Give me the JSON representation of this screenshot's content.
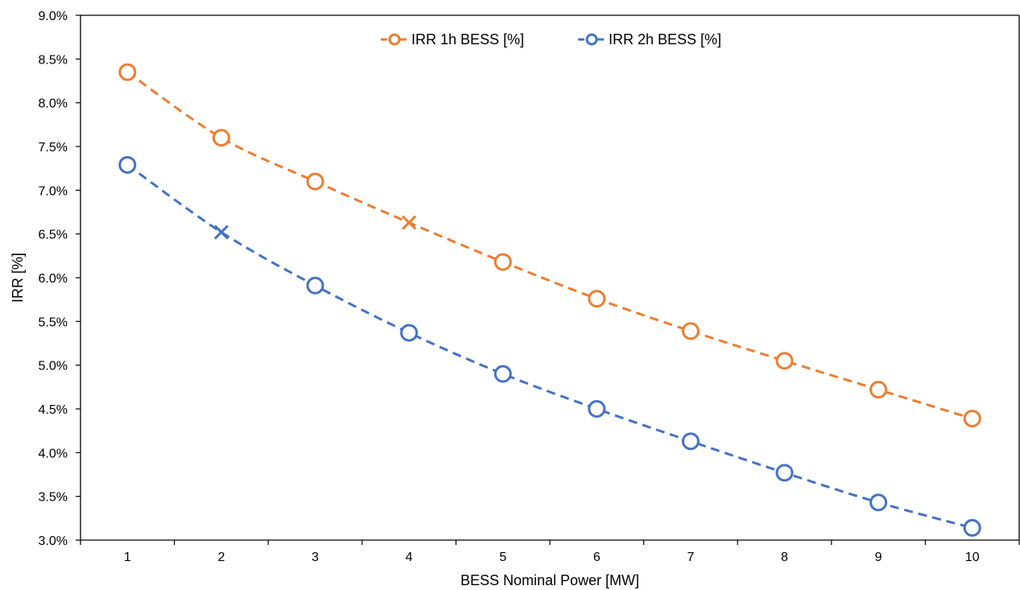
{
  "chart_data": {
    "type": "line",
    "title": "",
    "xlabel": "BESS Nominal Power [MW]",
    "ylabel": "IRR [%]",
    "x": [
      1,
      2,
      3,
      4,
      5,
      6,
      7,
      8,
      9,
      10
    ],
    "x_tick_labels": [
      "1",
      "2",
      "3",
      "4",
      "5",
      "6",
      "7",
      "8",
      "9",
      "10"
    ],
    "xlim": [
      0.5,
      10.5
    ],
    "ylim": [
      3.0,
      9.0
    ],
    "y_tick_labels": [
      "3.0%",
      "3.5%",
      "4.0%",
      "4.5%",
      "5.0%",
      "5.5%",
      "6.0%",
      "6.5%",
      "7.0%",
      "7.5%",
      "8.0%",
      "8.5%",
      "9.0%"
    ],
    "y_ticks": [
      3.0,
      3.5,
      4.0,
      4.5,
      5.0,
      5.5,
      6.0,
      6.5,
      7.0,
      7.5,
      8.0,
      8.5,
      9.0
    ],
    "grid": false,
    "legend_position": "top-center",
    "series": [
      {
        "name": "IRR 1h BESS [%]",
        "color": "#ED7D31",
        "line_style": "dashed",
        "marker": "open-circle",
        "values": [
          8.35,
          7.6,
          7.1,
          6.63,
          6.18,
          5.76,
          5.39,
          5.05,
          4.72,
          4.39
        ],
        "highlight": {
          "x": 4,
          "marker": "cross"
        }
      },
      {
        "name": "IRR 2h BESS [%]",
        "color": "#4472C4",
        "line_style": "dashed",
        "marker": "open-circle",
        "values": [
          7.29,
          6.52,
          5.91,
          5.37,
          4.9,
          4.5,
          4.13,
          3.77,
          3.43,
          3.14
        ],
        "highlight": {
          "x": 2,
          "marker": "cross"
        }
      }
    ]
  }
}
